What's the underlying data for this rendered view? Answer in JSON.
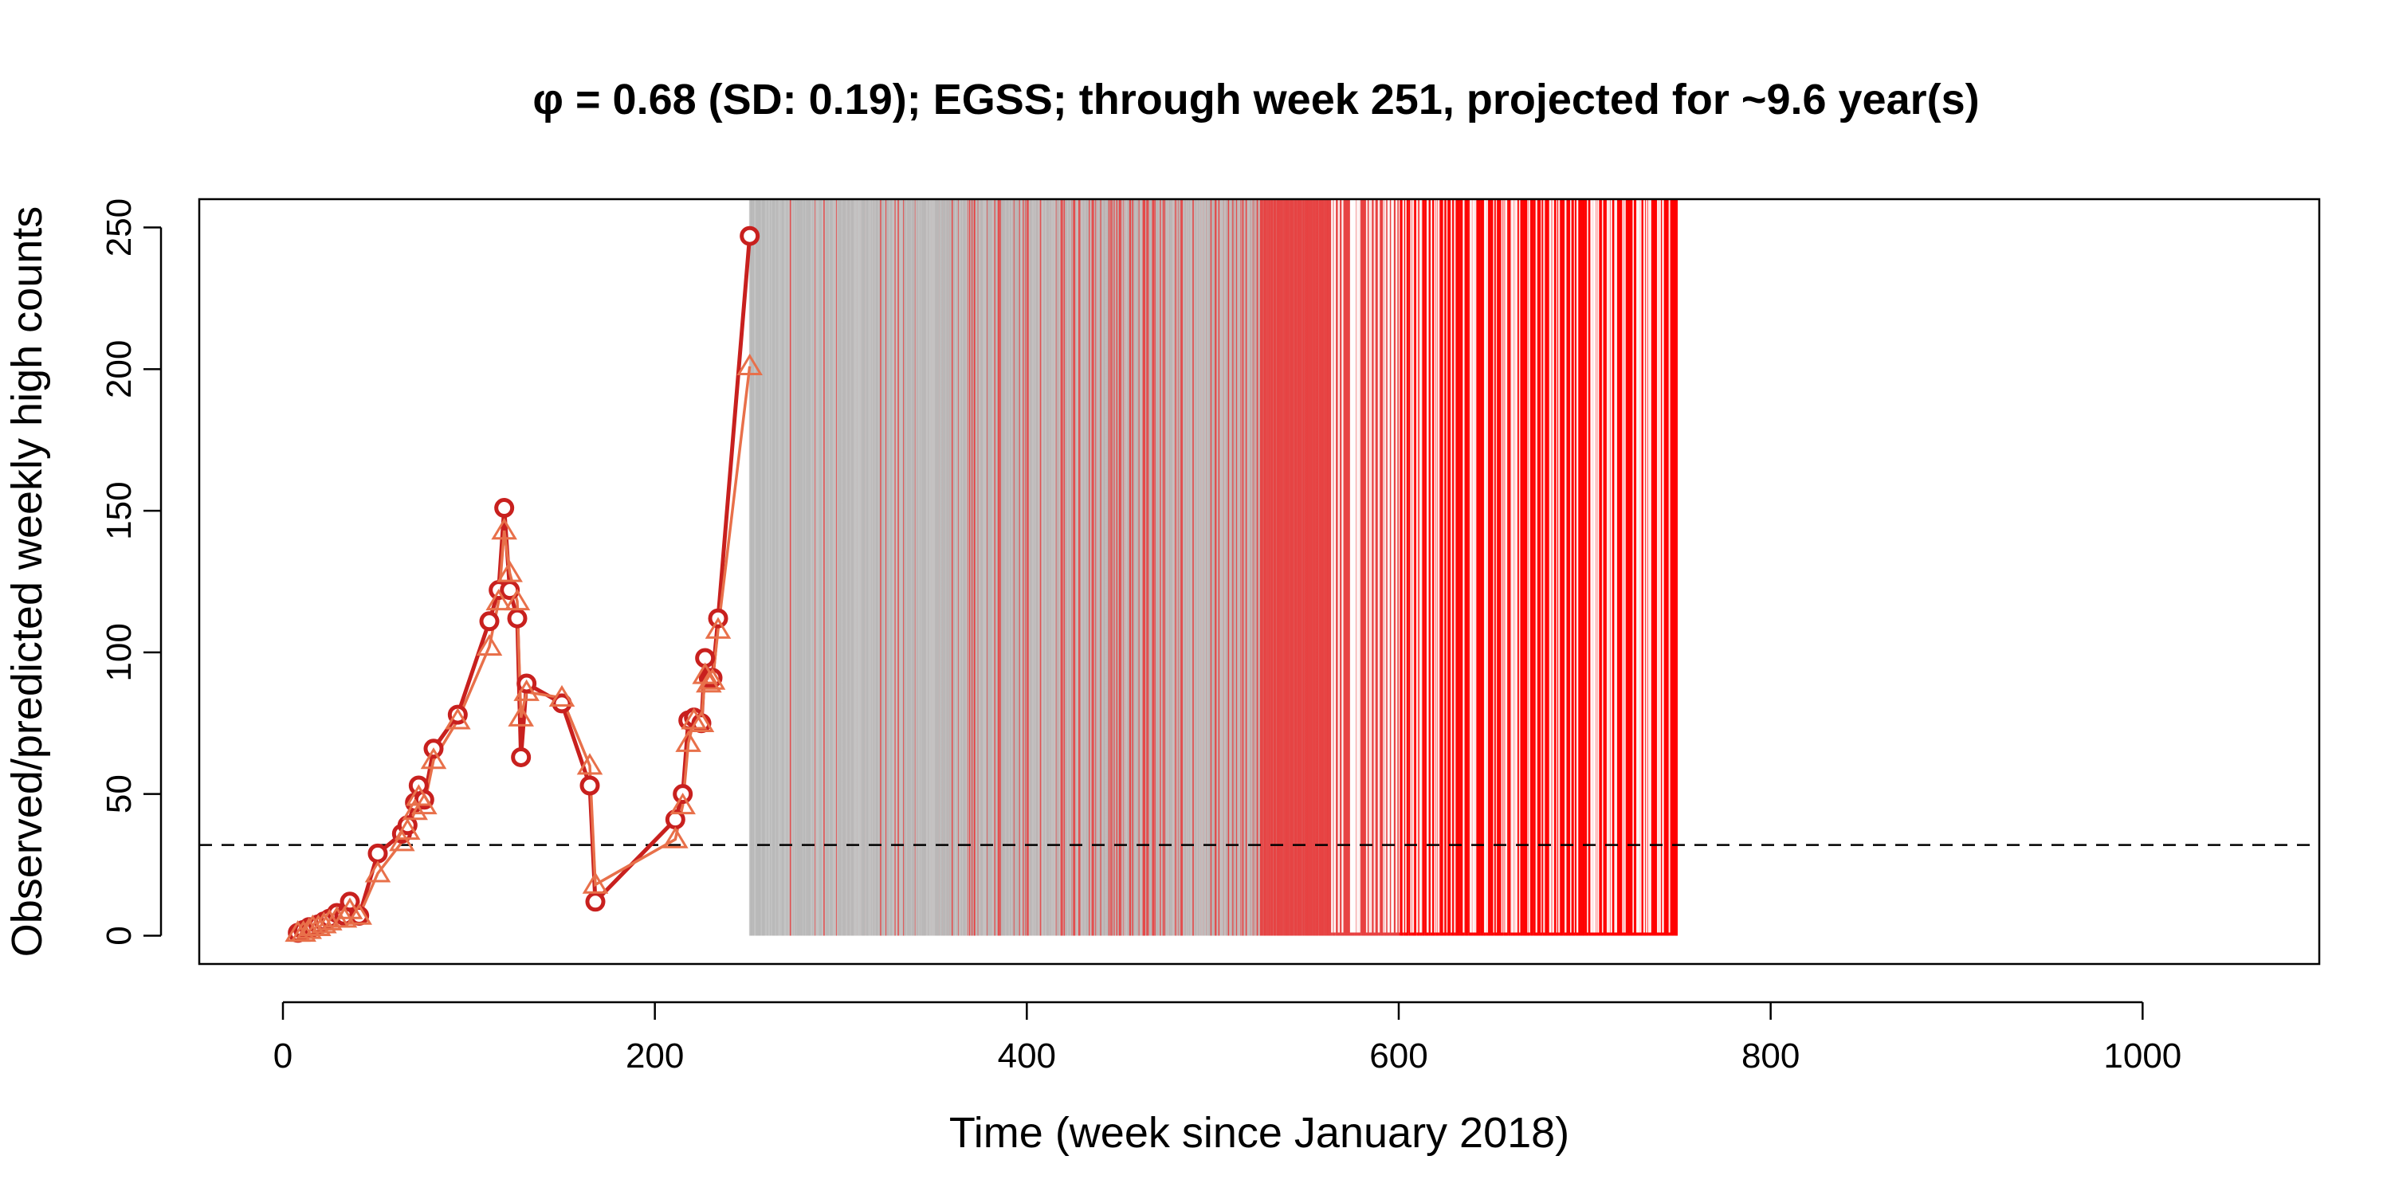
{
  "chart_data": {
    "type": "line",
    "title": "φ = 0.68 (SD: 0.19); EGSS; through week 251, projected for ~9.6 year(s)",
    "xlabel": "Time (week since January 2018)",
    "ylabel": "Observed/predicted weekly high counts",
    "xlim": [
      -45,
      1095
    ],
    "ylim": [
      -10,
      260
    ],
    "x_ticks": [
      0,
      200,
      400,
      600,
      800,
      1000
    ],
    "y_ticks": [
      0,
      50,
      100,
      150,
      200,
      250
    ],
    "x_tick_labels": [
      "0",
      "200",
      "400",
      "600",
      "800",
      "1000"
    ],
    "y_tick_labels": [
      "0",
      "50",
      "100",
      "150",
      "200",
      "250"
    ],
    "threshold": 32,
    "grid": false,
    "series": [
      {
        "marker": "circle",
        "color": "#c8201e",
        "x": [
          8,
          11,
          14,
          16,
          19,
          22,
          25,
          29,
          33,
          36,
          41,
          51,
          64,
          67,
          71,
          73,
          76,
          81,
          94,
          111,
          116,
          119,
          122,
          126,
          128,
          131,
          150,
          165,
          168,
          211,
          215,
          218,
          221,
          225,
          227,
          229,
          231,
          234,
          251
        ],
        "y": [
          1,
          2,
          3,
          3,
          4,
          5,
          6,
          8,
          7,
          12,
          7,
          29,
          36,
          39,
          47,
          53,
          48,
          66,
          78,
          111,
          122,
          151,
          122,
          112,
          63,
          89,
          82,
          53,
          12,
          41,
          50,
          76,
          77,
          75,
          98,
          91,
          91,
          112,
          247
        ]
      },
      {
        "marker": "triangle",
        "color": "#e8704a",
        "x": [
          8,
          11,
          14,
          16,
          19,
          22,
          25,
          29,
          33,
          36,
          41,
          51,
          64,
          67,
          71,
          73,
          76,
          81,
          94,
          111,
          116,
          119,
          122,
          126,
          128,
          131,
          150,
          165,
          168,
          211,
          215,
          218,
          221,
          225,
          227,
          229,
          231,
          234,
          251
        ],
        "y": [
          1,
          1,
          2,
          3,
          3,
          4,
          5,
          6,
          6,
          9,
          7,
          22,
          33,
          37,
          44,
          49,
          46,
          62,
          76,
          102,
          118,
          143,
          128,
          118,
          77,
          86,
          84,
          60,
          18,
          34,
          46,
          68,
          76,
          75,
          92,
          89,
          90,
          108,
          201
        ]
      }
    ],
    "projection": {
      "start_week": 251,
      "end_week": 750,
      "ymin": 0,
      "ymax": 260,
      "colors": [
        "#bdbdbd",
        "#ff0000"
      ]
    }
  }
}
